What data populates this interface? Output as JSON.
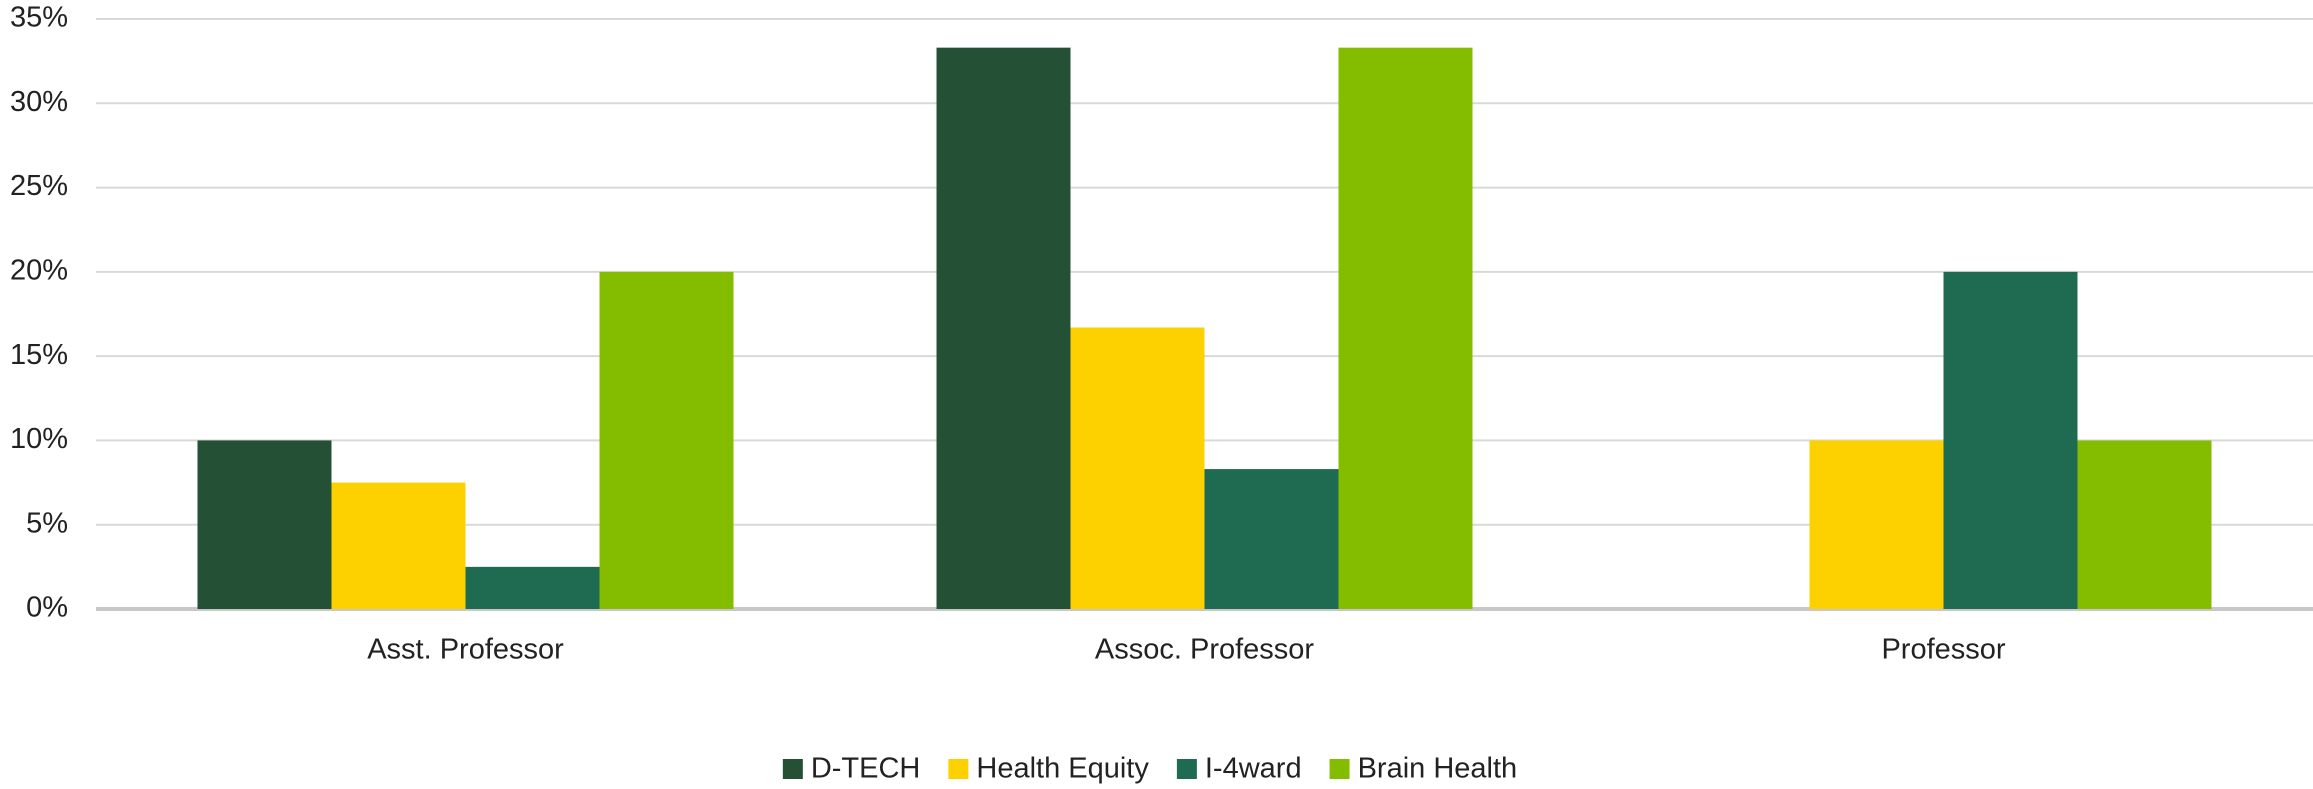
{
  "chart_data": {
    "type": "bar",
    "categories": [
      "Asst. Professor",
      "Assoc. Professor",
      "Professor"
    ],
    "series": [
      {
        "name": "D-TECH",
        "color": "#245135",
        "values": [
          10,
          33.3,
          0
        ]
      },
      {
        "name": "Health Equity",
        "color": "#fdd000",
        "values": [
          7.5,
          16.7,
          10
        ]
      },
      {
        "name": "I-4ward",
        "color": "#1e6b52",
        "values": [
          2.5,
          8.3,
          20
        ]
      },
      {
        "name": "Brain Health",
        "color": "#84bd00",
        "values": [
          20,
          33.3,
          10
        ]
      }
    ],
    "ylim": [
      0,
      35
    ],
    "yticks": [
      {
        "value": 0,
        "label": "0%"
      },
      {
        "value": 5,
        "label": "5%"
      },
      {
        "value": 10,
        "label": "10%"
      },
      {
        "value": 15,
        "label": "15%"
      },
      {
        "value": 20,
        "label": "20%"
      },
      {
        "value": 25,
        "label": "25%"
      },
      {
        "value": 30,
        "label": "30%"
      },
      {
        "value": 35,
        "label": "35%"
      }
    ],
    "grid": true,
    "legend": "bottom"
  }
}
